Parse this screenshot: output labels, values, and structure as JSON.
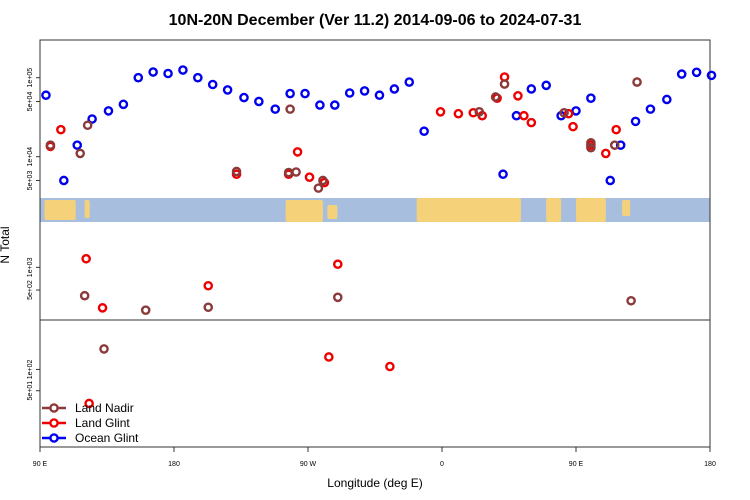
{
  "chart_data": {
    "type": "scatter",
    "title": "10N-20N December (Ver 11.2)   2014-09-06 to 2024-07-31",
    "xlabel": "Longitude (deg E)",
    "ylabel": "N Total",
    "x_ticks": [
      {
        "value": 90,
        "label": "90 E"
      },
      {
        "value": 180,
        "label": "180"
      },
      {
        "value": 270,
        "label": "90 W"
      },
      {
        "value": 360,
        "label": "0"
      },
      {
        "value": 450,
        "label": "90 E"
      },
      {
        "value": 540,
        "label": "180"
      }
    ],
    "xlim": [
      90,
      540
    ],
    "panels": [
      {
        "name": "upper",
        "scale": "log",
        "ylim": [
          3000,
          300000
        ],
        "y_ticks": [
          {
            "value": 5000,
            "label": "5e+03"
          },
          {
            "value": 10000,
            "label": "1e+04"
          },
          {
            "value": 50000,
            "label": "5e+04"
          },
          {
            "value": 100000,
            "label": "1e+05"
          }
        ]
      },
      {
        "name": "middle",
        "scale": "log",
        "ylim": [
          200,
          4000
        ],
        "y_ticks": [
          {
            "value": 500,
            "label": "5e+02"
          },
          {
            "value": 1000,
            "label": "1e+03"
          }
        ]
      },
      {
        "name": "lower",
        "scale": "log",
        "ylim": [
          8,
          500
        ],
        "y_ticks": [
          {
            "value": 50,
            "label": "5e+01"
          },
          {
            "value": 100,
            "label": "1e+02"
          }
        ]
      }
    ],
    "legend": {
      "position": "bottom-left",
      "entries": [
        {
          "name": "Land Nadir",
          "color": "#8b3a3a"
        },
        {
          "name": "Land Glint",
          "color": "#ee0000"
        },
        {
          "name": "Ocean Glint",
          "color": "#0000ee"
        }
      ]
    },
    "series": [
      {
        "name": "Ocean Glint",
        "color": "#0000ee",
        "points": [
          [
            94,
            60000
          ],
          [
            106,
            5000
          ],
          [
            115,
            14000
          ],
          [
            125,
            30000
          ],
          [
            136,
            38000
          ],
          [
            146,
            46000
          ],
          [
            156,
            100000
          ],
          [
            166,
            118000
          ],
          [
            176,
            113000
          ],
          [
            186,
            125000
          ],
          [
            196,
            100000
          ],
          [
            206,
            82000
          ],
          [
            216,
            70000
          ],
          [
            227,
            56000
          ],
          [
            237,
            50000
          ],
          [
            248,
            40000
          ],
          [
            258,
            63000
          ],
          [
            268,
            63000
          ],
          [
            278,
            45000
          ],
          [
            288,
            45000
          ],
          [
            298,
            64000
          ],
          [
            308,
            68000
          ],
          [
            318,
            60000
          ],
          [
            328,
            72000
          ],
          [
            338,
            88000
          ],
          [
            348,
            21000
          ],
          [
            401,
            6000
          ],
          [
            410,
            33000
          ],
          [
            420,
            72000
          ],
          [
            430,
            80000
          ],
          [
            440,
            33000
          ],
          [
            450,
            38000
          ],
          [
            460,
            55000
          ],
          [
            473,
            5000
          ],
          [
            480,
            14000
          ],
          [
            490,
            28000
          ],
          [
            500,
            40000
          ],
          [
            511,
            53000
          ],
          [
            521,
            111000
          ],
          [
            531,
            117000
          ],
          [
            541,
            107000
          ]
        ]
      },
      {
        "name": "Land Glint",
        "color": "#ee0000",
        "points": [
          [
            97,
            13500
          ],
          [
            104,
            22000
          ],
          [
            222,
            6000
          ],
          [
            257,
            6000
          ],
          [
            263,
            11500
          ],
          [
            271,
            5500
          ],
          [
            281,
            4700
          ],
          [
            359,
            37000
          ],
          [
            371,
            35000
          ],
          [
            381,
            36000
          ],
          [
            387,
            33000
          ],
          [
            397,
            55000
          ],
          [
            402,
            102000
          ],
          [
            411,
            59000
          ],
          [
            415,
            33000
          ],
          [
            420,
            27000
          ],
          [
            445,
            35000
          ],
          [
            448,
            24000
          ],
          [
            460,
            14000
          ],
          [
            470,
            11000
          ],
          [
            477,
            22000
          ],
          [
            121,
            1300
          ],
          [
            203,
            570
          ],
          [
            290,
            1100
          ],
          [
            132,
            290
          ],
          [
            123,
            33
          ],
          [
            325,
            110
          ],
          [
            284,
            150
          ]
        ]
      },
      {
        "name": "Land Nadir",
        "color": "#8b3a3a",
        "points": [
          [
            97,
            14000
          ],
          [
            222,
            6500
          ],
          [
            257,
            6300
          ],
          [
            277,
            4000
          ],
          [
            385,
            37000
          ],
          [
            396,
            57000
          ],
          [
            402,
            83000
          ],
          [
            442,
            36000
          ],
          [
            460,
            15000
          ],
          [
            476,
            14000
          ],
          [
            258,
            40000
          ],
          [
            262,
            6400
          ],
          [
            280,
            5000
          ],
          [
            117,
            11000
          ],
          [
            122,
            25000
          ],
          [
            133,
            195
          ],
          [
            203,
            295
          ],
          [
            290,
            400
          ],
          [
            487,
            360
          ],
          [
            491,
            88000
          ],
          [
            460,
            13000
          ],
          [
            120,
            420
          ],
          [
            161,
            270
          ]
        ]
      }
    ]
  }
}
